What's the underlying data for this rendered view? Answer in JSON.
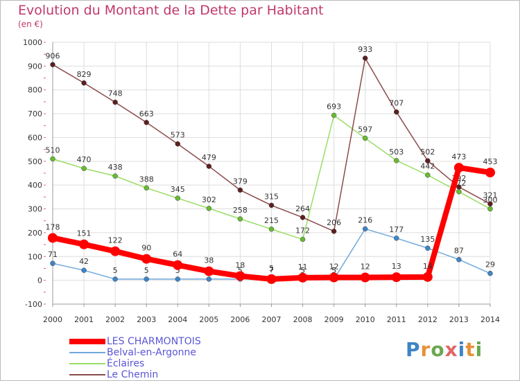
{
  "title": "Evolution du Montant de la Dette par Habitant",
  "unit_label": "(en €)",
  "brand": "Proxiti",
  "colors": {
    "title": "#c0386b",
    "legend_text": "#5a55d6",
    "grid": "#dddddd"
  },
  "chart_data": {
    "type": "line",
    "title": "Evolution du Montant de la Dette par Habitant",
    "ylabel": "(en €)",
    "ylim": [
      -100,
      1000
    ],
    "yticks": [
      -100,
      0,
      100,
      200,
      300,
      400,
      500,
      600,
      700,
      800,
      900,
      1000
    ],
    "grid": true,
    "legend_position": "bottom",
    "x": [
      "2000",
      "2001",
      "2002",
      "2003",
      "2004",
      "2005",
      "2006",
      "2007",
      "2008",
      "2009",
      "2010",
      "2011",
      "2012",
      "2013",
      "2014"
    ],
    "series": [
      {
        "name": "LES CHARMONTOIS",
        "color": "#ff0000",
        "marker": "#ff0000",
        "thick": true,
        "values": [
          178,
          151,
          122,
          90,
          64,
          38,
          18,
          5,
          11,
          12,
          12,
          13,
          14,
          473,
          453
        ]
      },
      {
        "name": "Belval-en-Argonne",
        "color": "#6fa8dc",
        "marker": "#3d85c6",
        "thick": false,
        "values": [
          71,
          42,
          5,
          5,
          5,
          5,
          5,
          7,
          5,
          5,
          216,
          177,
          135,
          87,
          29
        ]
      },
      {
        "name": "Éclaires",
        "color": "#99dd66",
        "marker": "#66bb33",
        "thick": false,
        "values": [
          510,
          470,
          438,
          388,
          345,
          302,
          258,
          215,
          172,
          693,
          597,
          503,
          442,
          372,
          300
        ]
      },
      {
        "name": "Le Chemin",
        "color": "#8b4a4a",
        "marker": "#5c1f1f",
        "thick": false,
        "values": [
          906,
          829,
          748,
          663,
          573,
          479,
          379,
          315,
          264,
          206,
          933,
          707,
          502,
          392,
          321
        ]
      }
    ]
  }
}
